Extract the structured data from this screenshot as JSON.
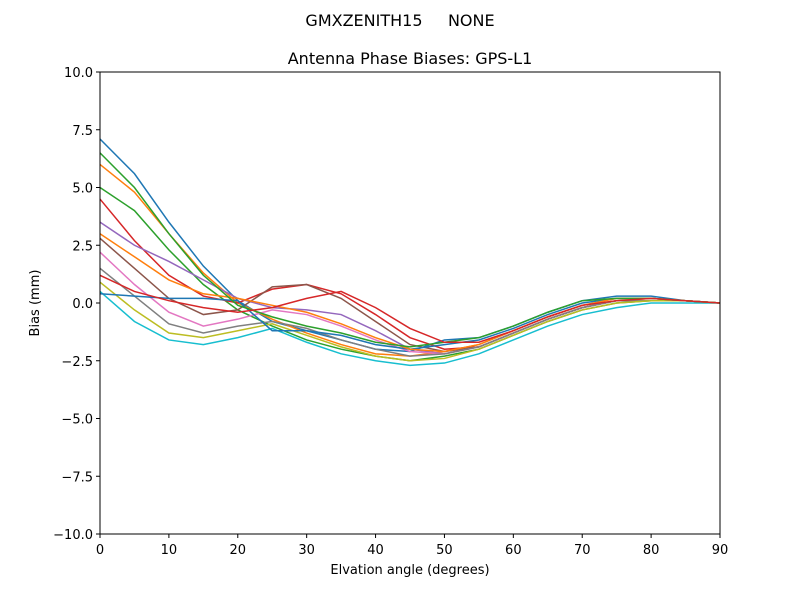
{
  "chart_data": {
    "type": "line",
    "suptitle": "GMXZENITH15     NONE",
    "title": "Antenna Phase Biases: GPS-L1",
    "xlabel": "Elvation angle (degrees)",
    "ylabel": "Bias (mm)",
    "x": [
      0,
      5,
      10,
      15,
      20,
      25,
      30,
      35,
      40,
      45,
      50,
      55,
      60,
      65,
      70,
      75,
      80,
      85,
      90
    ],
    "xlim": [
      0,
      90
    ],
    "xticks": [
      0,
      10,
      20,
      30,
      40,
      50,
      60,
      70,
      80,
      90
    ],
    "ylim": [
      -10,
      10
    ],
    "yticks": [
      {
        "value": -10,
        "label": "−10.0"
      },
      {
        "value": -7.5,
        "label": "−7.5"
      },
      {
        "value": -5,
        "label": "−5.0"
      },
      {
        "value": -2.5,
        "label": "−2.5"
      },
      {
        "value": 0,
        "label": "0.0"
      },
      {
        "value": 2.5,
        "label": "2.5"
      },
      {
        "value": 5,
        "label": "5.0"
      },
      {
        "value": 7.5,
        "label": "7.5"
      },
      {
        "value": 10,
        "label": "10.0"
      }
    ],
    "series": [
      {
        "color": "#1f77b4",
        "values": [
          7.1,
          5.6,
          3.5,
          1.6,
          0.1,
          -0.8,
          -1.2,
          -1.6,
          -2.0,
          -2.1,
          -1.6,
          -1.5,
          -1.0,
          -0.4,
          0.1,
          0.3,
          0.3,
          0.1,
          0
        ]
      },
      {
        "color": "#ff7f0e",
        "values": [
          6.0,
          4.8,
          3.0,
          1.3,
          0.0,
          -0.7,
          -1.3,
          -1.8,
          -2.2,
          -2.3,
          -2.1,
          -1.8,
          -1.2,
          -0.6,
          -0.1,
          0.1,
          0.2,
          0.1,
          0
        ]
      },
      {
        "color": "#2ca02c",
        "values": [
          5.0,
          4.0,
          2.3,
          0.8,
          -0.3,
          -1.0,
          -1.6,
          -2.0,
          -2.3,
          -2.5,
          -2.3,
          -2.0,
          -1.4,
          -0.8,
          -0.3,
          0.0,
          0.1,
          0.1,
          0
        ]
      },
      {
        "color": "#d62728",
        "values": [
          4.5,
          2.7,
          1.2,
          0.3,
          0.0,
          0.6,
          0.8,
          0.4,
          -0.5,
          -1.5,
          -2.0,
          -1.9,
          -1.3,
          -0.7,
          -0.2,
          0.1,
          0.1,
          0.1,
          0
        ]
      },
      {
        "color": "#9467bd",
        "values": [
          3.5,
          2.5,
          1.8,
          1.0,
          0.2,
          -0.2,
          -0.3,
          -0.5,
          -1.2,
          -2.0,
          -2.2,
          -1.9,
          -1.3,
          -0.7,
          -0.2,
          0.1,
          0.1,
          0.1,
          0
        ]
      },
      {
        "color": "#8c564b",
        "values": [
          2.8,
          1.5,
          0.2,
          -0.5,
          -0.3,
          0.7,
          0.8,
          0.2,
          -0.8,
          -1.8,
          -2.1,
          -1.9,
          -1.3,
          -0.7,
          -0.2,
          0.1,
          0.1,
          0.1,
          0
        ]
      },
      {
        "color": "#e377c2",
        "values": [
          2.2,
          0.8,
          -0.4,
          -1.0,
          -0.7,
          -0.3,
          -0.5,
          -1.0,
          -1.6,
          -2.1,
          -2.2,
          -1.9,
          -1.3,
          -0.7,
          -0.2,
          0.1,
          0.1,
          0.1,
          0
        ]
      },
      {
        "color": "#7f7f7f",
        "values": [
          1.5,
          0.3,
          -0.9,
          -1.3,
          -1.0,
          -0.8,
          -1.1,
          -1.6,
          -2.0,
          -2.3,
          -2.2,
          -1.9,
          -1.3,
          -0.7,
          -0.2,
          0.1,
          0.1,
          0.1,
          0
        ]
      },
      {
        "color": "#bcbd22",
        "values": [
          0.9,
          -0.3,
          -1.3,
          -1.5,
          -1.2,
          -0.9,
          -1.4,
          -1.9,
          -2.3,
          -2.5,
          -2.4,
          -2.0,
          -1.4,
          -0.8,
          -0.3,
          0.0,
          0.1,
          0.1,
          0
        ]
      },
      {
        "color": "#17becf",
        "values": [
          0.5,
          -0.8,
          -1.6,
          -1.8,
          -1.5,
          -1.1,
          -1.7,
          -2.2,
          -2.5,
          -2.7,
          -2.6,
          -2.2,
          -1.6,
          -1.0,
          -0.5,
          -0.2,
          0.0,
          0.0,
          0
        ]
      },
      {
        "color": "#1f77b4",
        "values": [
          0.4,
          0.3,
          0.2,
          0.2,
          0.1,
          -1.2,
          -1.2,
          -1.4,
          -1.8,
          -2.0,
          -1.8,
          -1.6,
          -1.1,
          -0.5,
          0.0,
          0.2,
          0.2,
          0.1,
          0
        ]
      },
      {
        "color": "#ff7f0e",
        "values": [
          3.0,
          2.0,
          1.0,
          0.4,
          0.2,
          -0.1,
          -0.4,
          -0.9,
          -1.5,
          -2.0,
          -2.1,
          -1.8,
          -1.2,
          -0.6,
          -0.1,
          0.2,
          0.2,
          0.1,
          0
        ]
      },
      {
        "color": "#2ca02c",
        "values": [
          6.5,
          5.0,
          3.0,
          1.2,
          -0.1,
          -0.6,
          -1.0,
          -1.3,
          -1.7,
          -1.9,
          -1.7,
          -1.5,
          -1.0,
          -0.4,
          0.1,
          0.2,
          0.2,
          0.1,
          0
        ]
      },
      {
        "color": "#d62728",
        "values": [
          1.2,
          0.5,
          0.1,
          -0.2,
          -0.4,
          -0.2,
          0.2,
          0.5,
          -0.2,
          -1.1,
          -1.7,
          -1.7,
          -1.2,
          -0.6,
          -0.1,
          0.1,
          0.2,
          0.1,
          0
        ]
      }
    ]
  }
}
